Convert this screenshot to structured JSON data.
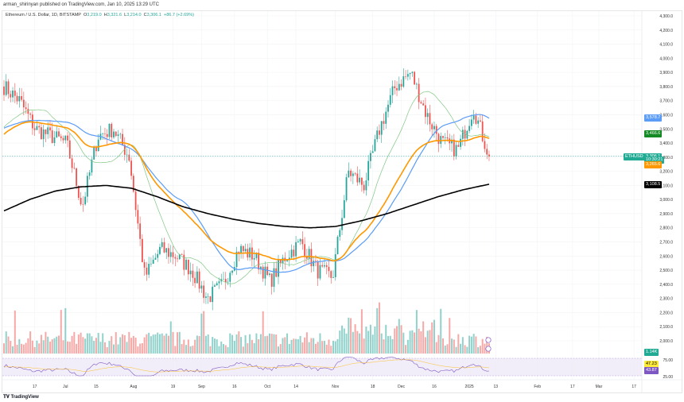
{
  "publisher_line": "arman_shirinyan published on TradingView.com, Jan 10, 2025 13:29 UTC",
  "legend": {
    "symbol": "Ethereum / U.S. Dollar, 1D, BITSTAMP",
    "o_label": "O",
    "o": "3,219.0",
    "h_label": "H",
    "h": "3,321.6",
    "l_label": "L",
    "l": "3,214.0",
    "c_label": "C",
    "c": "3,306.1",
    "change": "+86.7 (+2.69%)"
  },
  "price_axis": {
    "ticks": [
      4300,
      4200,
      4100,
      4000,
      3900,
      3800,
      3700,
      3600,
      3500,
      3400,
      3300,
      3200,
      3100,
      3000,
      2900,
      2800,
      2700,
      2600,
      2500,
      2400,
      2300,
      2200,
      2100,
      2000
    ]
  },
  "price_tags": [
    {
      "label": "3,578.7",
      "value": 3578.7,
      "color": "#5b9cf6"
    },
    {
      "label": "3,466.6",
      "value": 3466.6,
      "color": "#138a23"
    },
    {
      "label": "3,306.1",
      "value": 3306.1,
      "color": "#22ab94"
    },
    {
      "label": "10:30:21",
      "value": 3280,
      "color": "#22ab94"
    },
    {
      "label": "3,265.6",
      "value": 3250,
      "color": "#ff9800"
    },
    {
      "label": "3,108.5",
      "value": 3108.5,
      "color": "#000000"
    }
  ],
  "symbol_tag": "ETHUSD",
  "volume_tag": "1.14K",
  "rsi": {
    "ticks": [
      "75.00",
      "25.00"
    ],
    "tags": [
      {
        "label": "47.23",
        "color": "#ffeb3b",
        "text": "#000"
      },
      {
        "label": "43.87",
        "color": "#7e57c2",
        "text": "#fff"
      }
    ]
  },
  "time_axis": [
    {
      "label": "17",
      "date": "2024-06-17"
    },
    {
      "label": "Jul",
      "date": "2024-07-01"
    },
    {
      "label": "15",
      "date": "2024-07-15"
    },
    {
      "label": "Aug",
      "date": "2024-08-01"
    },
    {
      "label": "19",
      "date": "2024-08-19"
    },
    {
      "label": "Sep",
      "date": "2024-09-01"
    },
    {
      "label": "16",
      "date": "2024-09-16"
    },
    {
      "label": "Oct",
      "date": "2024-10-01"
    },
    {
      "label": "14",
      "date": "2024-10-14"
    },
    {
      "label": "Nov",
      "date": "2024-11-01"
    },
    {
      "label": "18",
      "date": "2024-11-18"
    },
    {
      "label": "Dec",
      "date": "2024-12-01"
    },
    {
      "label": "16",
      "date": "2024-12-16"
    },
    {
      "label": "2025",
      "date": "2025-01-01"
    },
    {
      "label": "13",
      "date": "2025-01-13"
    },
    {
      "label": "Feb",
      "date": "2025-02-01"
    },
    {
      "label": "17",
      "date": "2025-02-17"
    },
    {
      "label": "Mar",
      "date": "2025-03-01"
    },
    {
      "label": "17",
      "date": "2025-03-17"
    }
  ],
  "chart_data": {
    "type": "candlestick",
    "start_date": "2024-06-03",
    "end_date": "2025-01-10",
    "weekly_close_path": [
      3800,
      3700,
      3500,
      3450,
      3400,
      2950,
      3450,
      3500,
      3300,
      2450,
      2650,
      2600,
      2500,
      2300,
      2400,
      2650,
      2600,
      2420,
      2600,
      2700,
      2500,
      2450,
      3200,
      3100,
      3500,
      3800,
      3900,
      3600,
      3400,
      3350,
      3650,
      3306
    ],
    "ma_200_path": [
      2920,
      3000,
      3060,
      3090,
      3100,
      3080,
      3020,
      2950,
      2900,
      2860,
      2830,
      2810,
      2800,
      2810,
      2850,
      2900,
      2960,
      3020,
      3070,
      3108.5
    ],
    "colors": {
      "up": "#26a69a",
      "down": "#ef5350",
      "ma_green": "#81c784",
      "ma_blue": "#5b9cf6",
      "ma_orange": "#ff9800",
      "ma_black": "#000000",
      "rsi": "#7e57c2"
    }
  },
  "logo_text": "TradingView"
}
